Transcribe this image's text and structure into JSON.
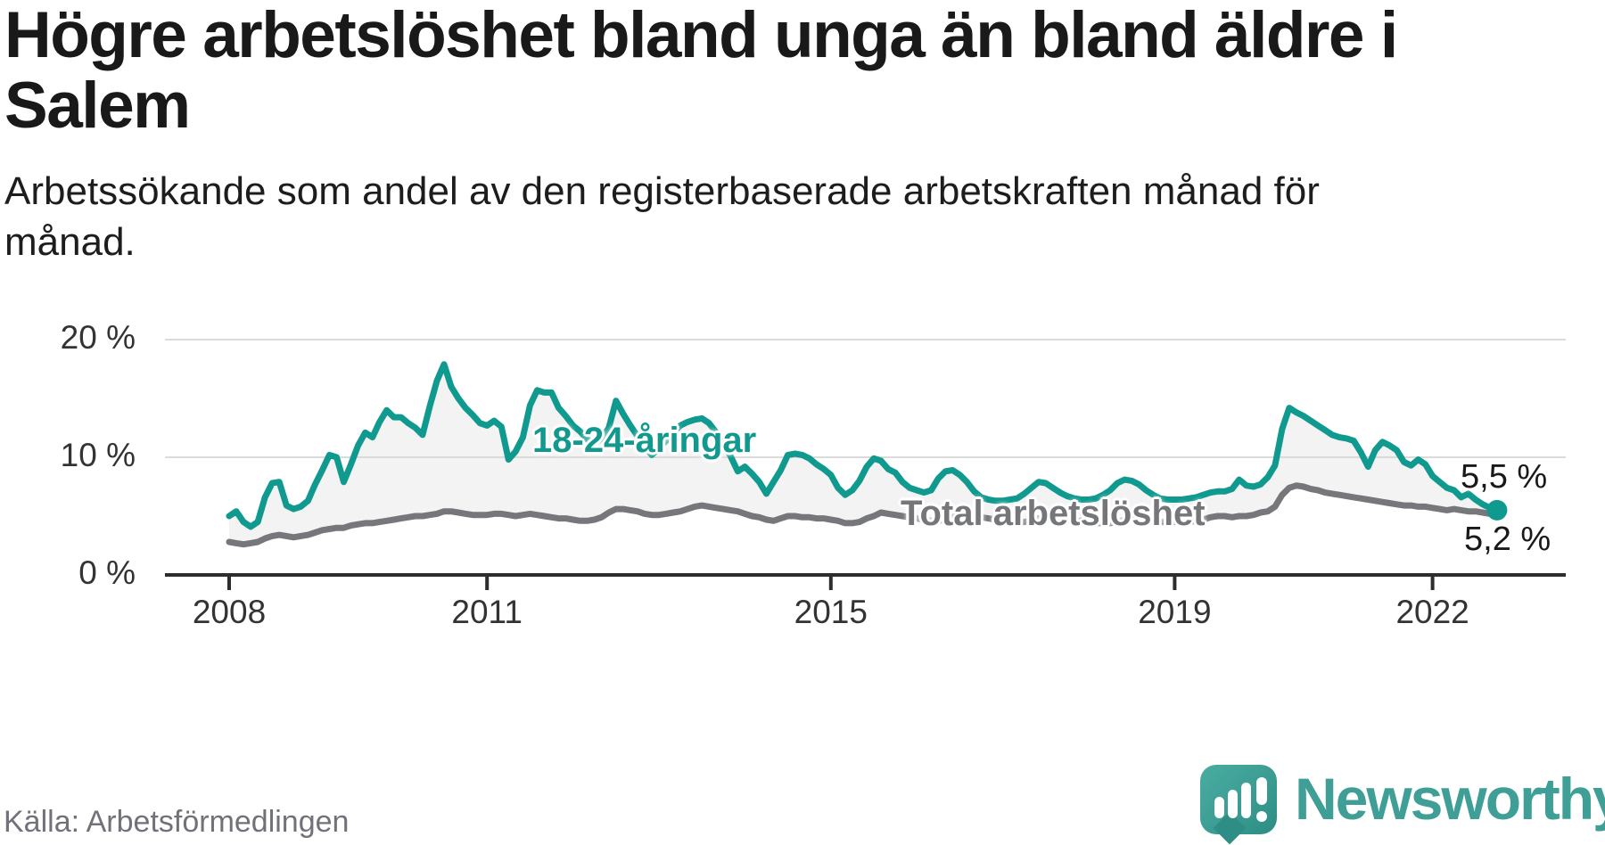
{
  "header": {
    "title_lines": [
      "Högre arbetslöshet bland unga än bland äldre i",
      "Salem"
    ],
    "subtitle_lines": [
      "Arbetssökande som andel av den registerbaserade arbetskraften månad för",
      "månad."
    ]
  },
  "chart_data": {
    "type": "line",
    "unit": "%",
    "frequency": "monthly",
    "x_start": "2008-01",
    "x_end": "2022-10",
    "ylim": [
      0,
      20
    ],
    "grid": "horizontal",
    "colors": {
      "youth_line": "#109a8f",
      "total_line": "#76777b",
      "area_fill": "#f3f3f3",
      "gridline": "#d8d8d8",
      "axis": "#2d2d2d"
    },
    "yticks": [
      {
        "value": 0,
        "label": "0 %"
      },
      {
        "value": 10,
        "label": "10 %"
      },
      {
        "value": 20,
        "label": "20 %"
      }
    ],
    "xticks": [
      {
        "year": 2008,
        "label": "2008"
      },
      {
        "year": 2011,
        "label": "2011"
      },
      {
        "year": 2015,
        "label": "2015"
      },
      {
        "year": 2019,
        "label": "2019"
      },
      {
        "year": 2022,
        "label": "2022"
      }
    ],
    "series": [
      {
        "name": "18-24-åringar",
        "color": "#109a8f",
        "end_label": "5,5 %",
        "end_value": 5.5,
        "values": [
          5.0,
          5.4,
          4.5,
          4.1,
          4.5,
          6.6,
          7.8,
          7.9,
          5.9,
          5.6,
          5.8,
          6.3,
          7.7,
          8.9,
          10.2,
          10.0,
          7.9,
          9.4,
          11.0,
          12.1,
          11.7,
          13.0,
          14.0,
          13.4,
          13.4,
          12.9,
          12.5,
          11.9,
          14.3,
          16.5,
          17.9,
          16.0,
          15.0,
          14.2,
          13.6,
          12.9,
          12.7,
          13.1,
          12.6,
          9.8,
          10.5,
          11.7,
          14.4,
          15.7,
          15.5,
          15.5,
          14.2,
          13.5,
          12.7,
          12.2,
          11.5,
          11.2,
          11.6,
          12.5,
          14.8,
          13.7,
          12.7,
          11.8,
          10.9,
          10.2,
          10.8,
          11.4,
          12.1,
          12.7,
          13.0,
          13.2,
          13.3,
          12.9,
          12.1,
          11.2,
          10.1,
          8.8,
          9.2,
          8.6,
          7.9,
          6.9,
          7.9,
          8.9,
          10.2,
          10.3,
          10.2,
          9.9,
          9.4,
          9.0,
          8.5,
          7.4,
          6.8,
          7.2,
          8.0,
          9.2,
          9.9,
          9.7,
          9.0,
          8.7,
          7.9,
          7.4,
          7.2,
          7.0,
          7.2,
          8.2,
          8.8,
          8.9,
          8.5,
          7.9,
          7.1,
          6.6,
          6.4,
          6.3,
          6.3,
          6.4,
          6.5,
          6.9,
          7.4,
          7.9,
          7.8,
          7.4,
          7.0,
          6.7,
          6.5,
          6.4,
          6.4,
          6.5,
          6.8,
          7.2,
          7.8,
          8.1,
          8.0,
          7.7,
          7.2,
          6.8,
          6.5,
          6.4,
          6.4,
          6.4,
          6.5,
          6.6,
          6.8,
          7.0,
          7.1,
          7.1,
          7.3,
          8.1,
          7.6,
          7.5,
          7.7,
          8.3,
          9.3,
          12.4,
          14.2,
          13.8,
          13.5,
          13.1,
          12.7,
          12.3,
          11.9,
          11.7,
          11.6,
          11.4,
          10.4,
          9.2,
          10.6,
          11.3,
          11.0,
          10.6,
          9.6,
          9.3,
          9.8,
          9.4,
          8.4,
          7.9,
          7.4,
          7.2,
          6.6,
          6.9,
          6.4,
          6.0,
          5.7,
          5.5
        ]
      },
      {
        "name": "Total arbetslöshet",
        "color": "#76777b",
        "end_label": "5,2 %",
        "end_value": 5.2,
        "values": [
          2.8,
          2.7,
          2.6,
          2.7,
          2.8,
          3.1,
          3.3,
          3.4,
          3.3,
          3.2,
          3.3,
          3.4,
          3.6,
          3.8,
          3.9,
          4.0,
          4.0,
          4.2,
          4.3,
          4.4,
          4.4,
          4.5,
          4.6,
          4.7,
          4.8,
          4.9,
          5.0,
          5.0,
          5.1,
          5.2,
          5.4,
          5.4,
          5.3,
          5.2,
          5.1,
          5.1,
          5.1,
          5.2,
          5.2,
          5.1,
          5.0,
          5.1,
          5.2,
          5.1,
          5.0,
          4.9,
          4.8,
          4.8,
          4.7,
          4.6,
          4.6,
          4.7,
          4.9,
          5.3,
          5.6,
          5.6,
          5.5,
          5.4,
          5.2,
          5.1,
          5.1,
          5.2,
          5.3,
          5.4,
          5.6,
          5.8,
          5.9,
          5.8,
          5.7,
          5.6,
          5.5,
          5.4,
          5.2,
          5.0,
          4.9,
          4.7,
          4.6,
          4.8,
          5.0,
          5.0,
          4.9,
          4.9,
          4.8,
          4.8,
          4.7,
          4.6,
          4.4,
          4.4,
          4.5,
          4.8,
          5.0,
          5.3,
          5.2,
          5.1,
          5.0,
          4.9,
          4.8,
          4.7,
          4.6,
          4.6,
          4.7,
          4.9,
          5.1,
          5.1,
          5.0,
          4.9,
          4.8,
          4.7,
          4.6,
          4.5,
          4.5,
          4.5,
          4.6,
          4.8,
          5.0,
          4.9,
          4.8,
          4.7,
          4.6,
          4.6,
          4.5,
          4.4,
          4.4,
          4.4,
          4.5,
          4.7,
          4.8,
          4.8,
          4.7,
          4.6,
          4.5,
          4.5,
          4.5,
          4.5,
          4.5,
          4.6,
          4.7,
          4.9,
          5.0,
          5.0,
          4.9,
          5.0,
          5.0,
          5.1,
          5.3,
          5.4,
          5.8,
          6.8,
          7.4,
          7.6,
          7.5,
          7.3,
          7.2,
          7.0,
          6.9,
          6.8,
          6.7,
          6.6,
          6.5,
          6.4,
          6.3,
          6.2,
          6.1,
          6.0,
          5.9,
          5.9,
          5.8,
          5.8,
          5.7,
          5.6,
          5.5,
          5.6,
          5.5,
          5.4,
          5.4,
          5.3,
          5.2,
          5.2
        ]
      }
    ]
  },
  "footer": {
    "source": "Källa: Arbetsförmedlingen",
    "brand": "Newsworthy"
  }
}
